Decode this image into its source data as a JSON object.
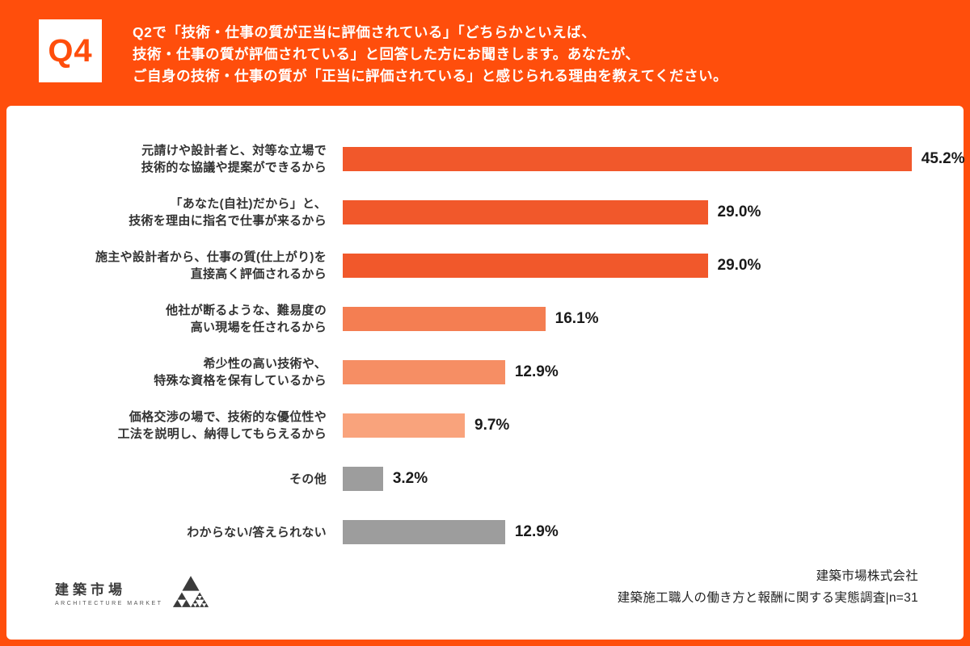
{
  "header": {
    "q_label": "Q4",
    "title_lines": [
      "Q2で「技術・仕事の質が正当に評価されている」「どちらかといえば、",
      "技術・仕事の質が評価されている」と回答した方にお聞きします。あなたが、",
      "ご自身の技術・仕事の質が「正当に評価されている」と感じられる理由を教えてください。"
    ]
  },
  "chart_data": {
    "type": "bar",
    "orientation": "horizontal",
    "categories": [
      [
        "元請けや設計者と、対等な立場で",
        "技術的な協議や提案ができるから"
      ],
      [
        "「あなた(自社)だから」と、",
        "技術を理由に指名で仕事が来るから"
      ],
      [
        "施主や設計者から、仕事の質(仕上がり)を",
        "直接高く評価されるから"
      ],
      [
        "他社が断るような、難易度の",
        "高い現場を任されるから"
      ],
      [
        "希少性の高い技術や、",
        "特殊な資格を保有しているから"
      ],
      [
        "価格交渉の場で、技術的な優位性や",
        "工法を説明し、納得してもらえるから"
      ],
      [
        "その他"
      ],
      [
        "わからない/答えられない"
      ]
    ],
    "values": [
      45.2,
      29.0,
      29.0,
      16.1,
      12.9,
      9.7,
      3.2,
      12.9
    ],
    "value_labels": [
      "45.2%",
      "29.0%",
      "29.0%",
      "16.1%",
      "12.9%",
      "9.7%",
      "3.2%",
      "12.9%"
    ],
    "colors": [
      "#F1582B",
      "#F1582B",
      "#F1582B",
      "#F47E52",
      "#F68E64",
      "#F9A37C",
      "#9D9D9D",
      "#9D9D9D"
    ],
    "xmax": 46.5,
    "xlabel": "",
    "ylabel": "",
    "grid": false,
    "legend": "none",
    "title": "Q4 正当に評価されていると感じられる理由",
    "sample_size": "n=31"
  },
  "footer": {
    "logo_text": "建築市場",
    "logo_sub": "ARCHITECTURE MARKET",
    "company": "建築市場株式会社",
    "survey": "建築施工職人の働き方と報酬に関する実態調査|n=31"
  },
  "colors": {
    "background": "#FF4E0C",
    "badge_text": "#FF4E0C",
    "bar_dark": "#F1582B",
    "bar_mid": "#F47E52",
    "bar_light": "#F9A37C",
    "bar_gray": "#9D9D9D",
    "card": "#FFFFFF"
  }
}
